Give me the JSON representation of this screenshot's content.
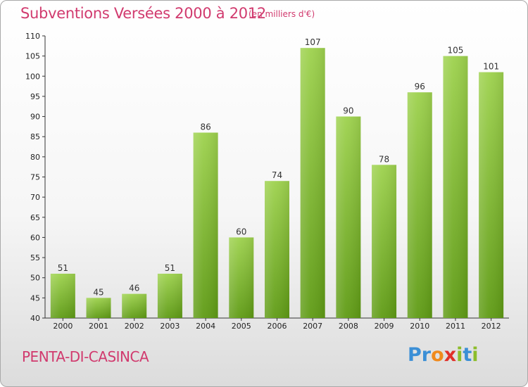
{
  "header": {
    "title": "Subventions Versées 2000 à 2012",
    "subtitle": "(en milliers d'€)"
  },
  "footer": {
    "commune": "PENTA-DI-CASINCA",
    "logo_text": "Proxiti",
    "logo_letters": [
      {
        "char": "P",
        "color": "#3b8fd6"
      },
      {
        "char": "r",
        "color": "#3b8fd6"
      },
      {
        "char": "o",
        "color": "#f08a1c"
      },
      {
        "char": "x",
        "color": "#e0302a"
      },
      {
        "char": "i",
        "color": "#8cbd2a"
      },
      {
        "char": "t",
        "color": "#3b8fd6"
      },
      {
        "char": "i",
        "color": "#8cbd2a"
      }
    ]
  },
  "colors": {
    "title": "#d13a6e",
    "bar_top": "#9ed24e",
    "bar_bottom": "#5f9b15"
  },
  "chart_data": {
    "type": "bar",
    "title": "Subventions Versées 2000 à 2012",
    "subtitle": "(en milliers d'€)",
    "categories": [
      "2000",
      "2001",
      "2002",
      "2003",
      "2004",
      "2005",
      "2006",
      "2007",
      "2008",
      "2009",
      "2010",
      "2011",
      "2012"
    ],
    "values": [
      51,
      45,
      46,
      51,
      86,
      60,
      74,
      107,
      90,
      78,
      96,
      105,
      101
    ],
    "ylim": [
      40,
      110
    ],
    "yticks": [
      40,
      45,
      50,
      55,
      60,
      65,
      70,
      75,
      80,
      85,
      90,
      95,
      100,
      105,
      110
    ],
    "grid": false,
    "legend": "none"
  }
}
